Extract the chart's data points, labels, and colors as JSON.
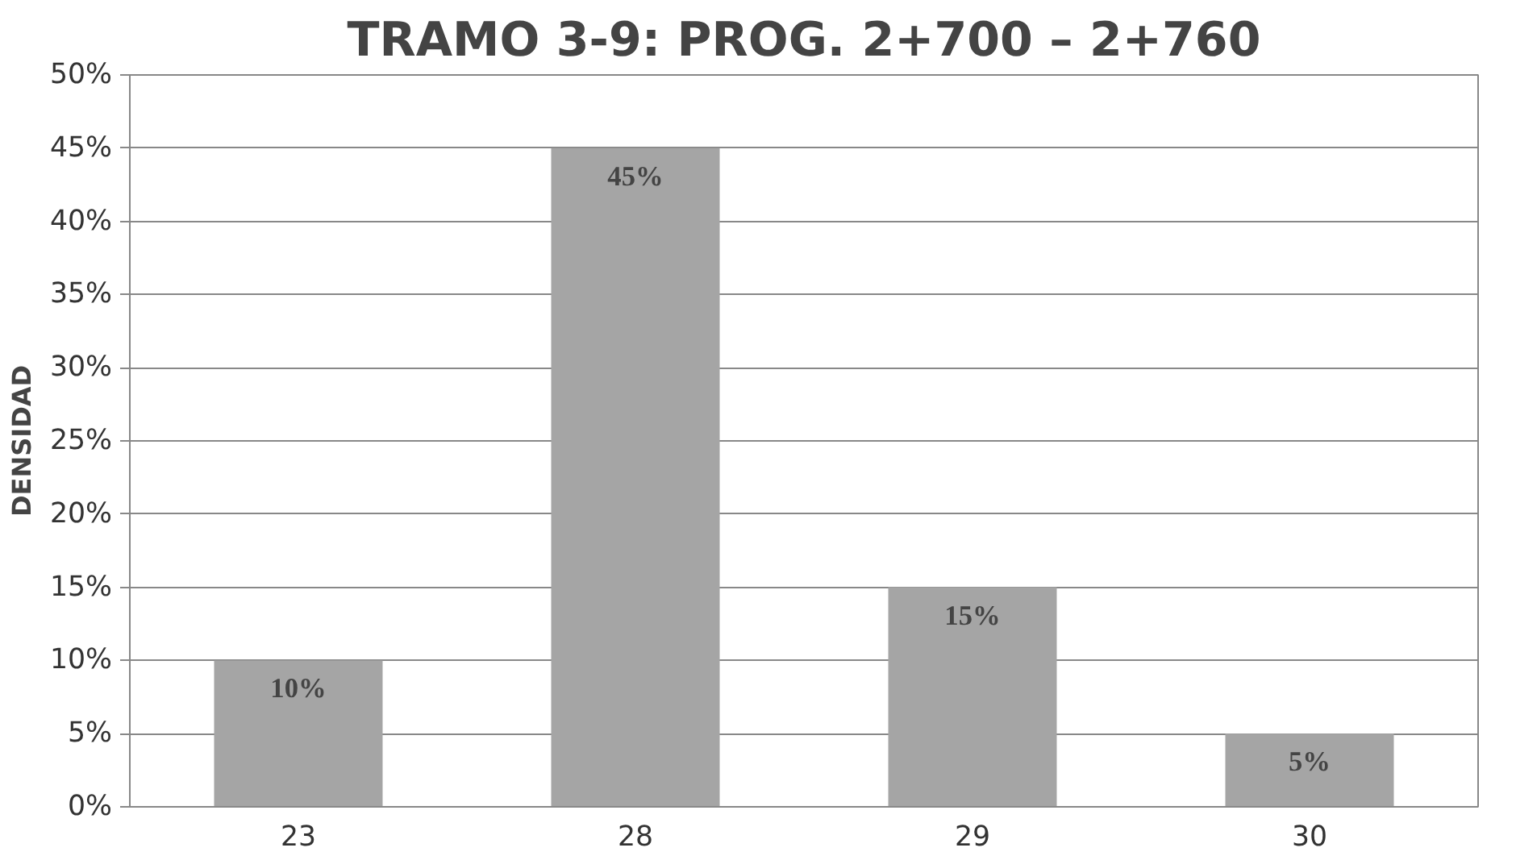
{
  "chart_data": {
    "type": "bar",
    "title": "TRAMO 3-9: PROG. 2+700 – 2+760",
    "ylabel": "DENSIDAD",
    "categories": [
      "23",
      "28",
      "29",
      "30"
    ],
    "values": [
      10,
      45,
      15,
      5
    ],
    "color": "#a5a5a5",
    "value_labels": [
      "10%",
      "45%",
      "15%",
      "5%"
    ],
    "ylim": [
      0,
      50
    ],
    "yticks": [
      {
        "value": 0,
        "label": "0%"
      },
      {
        "value": 5,
        "label": "5%"
      },
      {
        "value": 10,
        "label": "10%"
      },
      {
        "value": 15,
        "label": "15%"
      },
      {
        "value": 20,
        "label": "20%"
      },
      {
        "value": 25,
        "label": "25%"
      },
      {
        "value": 30,
        "label": "30%"
      },
      {
        "value": 35,
        "label": "35%"
      },
      {
        "value": 40,
        "label": "40%"
      },
      {
        "value": 45,
        "label": "45%"
      },
      {
        "value": 50,
        "label": "50%"
      }
    ],
    "grid": "y"
  }
}
